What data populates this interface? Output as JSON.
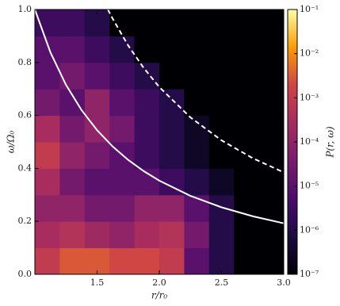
{
  "chart_data": {
    "type": "heatmap",
    "xlabel": "r/r₀",
    "ylabel": "ω/Ω₀",
    "colorbar_label": "P(r, ω)",
    "xlim": [
      1,
      3
    ],
    "ylim": [
      0,
      1
    ],
    "xticks": [
      {
        "value": 1.5,
        "label": "1.5"
      },
      {
        "value": 2,
        "label": "2.0"
      },
      {
        "value": 2.5,
        "label": "2.5"
      },
      {
        "value": 3,
        "label": "3.0"
      }
    ],
    "yticks": [
      {
        "value": 0,
        "label": "0.0"
      },
      0.2,
      0.4,
      0.6,
      0.8,
      {
        "value": 1,
        "label": "1.0"
      }
    ],
    "clim": [
      1e-07,
      0.1
    ],
    "color_log": true,
    "cticks": [
      {
        "value": 1e-07,
        "label": "10⁻⁷"
      },
      {
        "value": 1e-06,
        "label": "10⁻⁶"
      },
      {
        "value": 1e-05,
        "label": "10⁻⁵"
      },
      {
        "value": 0.0001,
        "label": "10⁻⁴"
      },
      {
        "value": 0.001,
        "label": "10⁻³"
      },
      {
        "value": 0.01,
        "label": "10⁻²"
      },
      {
        "value": 0.1,
        "label": "10⁻¹"
      }
    ],
    "x_edges": [
      1,
      1.2,
      1.4,
      1.6,
      1.8,
      2,
      2.2,
      2.4,
      2.6,
      2.8,
      3
    ],
    "y_edges": [
      0,
      0.1,
      0.2,
      0.3,
      0.4,
      0.5,
      0.6,
      0.7,
      0.8,
      0.9,
      1
    ],
    "z": [
      [
        0.001,
        0.003,
        0.003,
        0.002,
        0.002,
        0.001,
        1e-05,
        1e-06,
        1e-07,
        1e-07
      ],
      [
        0.0003,
        0.0005,
        0.0002,
        0.0001,
        0.0003,
        0.0005,
        3e-05,
        1e-06,
        1e-07,
        1e-07
      ],
      [
        0.0001,
        0.0001,
        3e-05,
        3e-05,
        0.0001,
        0.0001,
        1e-05,
        1e-06,
        1e-07,
        1e-07
      ],
      [
        0.0003,
        3e-05,
        1e-05,
        1e-05,
        1e-05,
        3e-06,
        1e-06,
        3e-07,
        1e-07,
        1e-07
      ],
      [
        0.001,
        0.0001,
        3e-05,
        1e-05,
        3e-06,
        1e-06,
        3e-07,
        1e-07,
        1e-07,
        1e-07
      ],
      [
        0.0003,
        3e-05,
        0.0001,
        3e-05,
        3e-06,
        1e-06,
        3e-07,
        1e-07,
        1e-07,
        1e-07
      ],
      [
        3e-05,
        1e-05,
        0.0001,
        1e-05,
        3e-06,
        1e-06,
        1e-07,
        1e-07,
        1e-07,
        1e-07
      ],
      [
        1e-05,
        3e-05,
        1e-05,
        3e-06,
        1e-06,
        1e-07,
        1e-07,
        1e-07,
        1e-07,
        1e-07
      ],
      [
        1e-05,
        1e-05,
        3e-06,
        1e-06,
        1e-07,
        1e-07,
        1e-07,
        1e-07,
        1e-07,
        1e-07
      ],
      [
        3e-06,
        3e-06,
        1e-06,
        1e-07,
        1e-07,
        1e-07,
        1e-07,
        1e-07,
        1e-07,
        1e-07
      ]
    ],
    "lines": [
      {
        "color": "#ffffff",
        "dashed": false,
        "x": [
          1,
          1.125,
          1.25,
          1.375,
          1.5,
          1.625,
          1.75,
          1.875,
          2,
          2.25,
          2.5,
          2.75,
          3
        ],
        "y": [
          1,
          0.8381,
          0.7155,
          0.6202,
          0.5443,
          0.4827,
          0.432,
          0.3895,
          0.3536,
          0.2963,
          0.253,
          0.2193,
          0.1925
        ]
      },
      {
        "color": "#ffffff",
        "dashed": true,
        "x": [
          1.587,
          1.625,
          1.75,
          1.875,
          2,
          2.25,
          2.5,
          2.75,
          3
        ],
        "y": [
          1,
          0.9654,
          0.864,
          0.779,
          0.7071,
          0.5926,
          0.506,
          0.4386,
          0.385
        ]
      }
    ]
  }
}
